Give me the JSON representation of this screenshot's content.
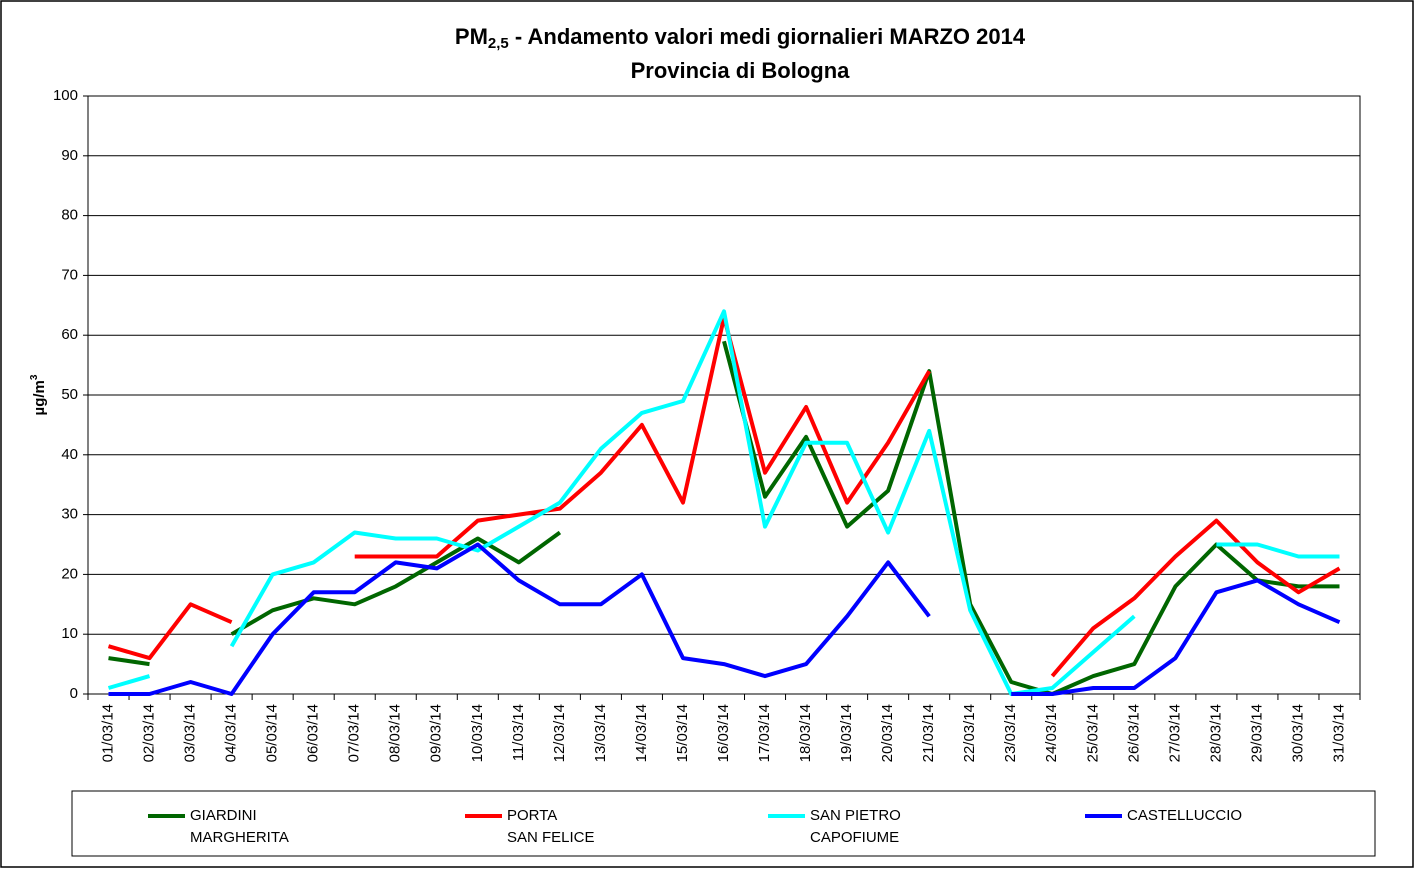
{
  "chart_data": {
    "type": "line",
    "title": "PM",
    "title_subscript": "2,5",
    "title_rest": " - Andamento valori medi giornalieri MARZO 2014",
    "subtitle": "Provincia di Bologna",
    "ylabel": "µg/m",
    "ylabel_superscript": "3",
    "categories": [
      "01/03/14",
      "02/03/14",
      "03/03/14",
      "04/03/14",
      "05/03/14",
      "06/03/14",
      "07/03/14",
      "08/03/14",
      "09/03/14",
      "10/03/14",
      "11/03/14",
      "12/03/14",
      "13/03/14",
      "14/03/14",
      "15/03/14",
      "16/03/14",
      "17/03/14",
      "18/03/14",
      "19/03/14",
      "20/03/14",
      "21/03/14",
      "22/03/14",
      "23/03/14",
      "24/03/14",
      "25/03/14",
      "26/03/14",
      "27/03/14",
      "28/03/14",
      "29/03/14",
      "30/03/14",
      "31/03/14"
    ],
    "series": [
      {
        "name": "GIARDINI\nMARGHERITA",
        "color": "#006600",
        "values": [
          6,
          5,
          null,
          10,
          14,
          16,
          15,
          18,
          22,
          26,
          22,
          27,
          null,
          null,
          null,
          59,
          33,
          43,
          28,
          34,
          54,
          15,
          2,
          0,
          3,
          5,
          18,
          25,
          19,
          18,
          18
        ]
      },
      {
        "name": "PORTA\nSAN FELICE",
        "color": "#ff0000",
        "values": [
          8,
          6,
          15,
          12,
          null,
          null,
          23,
          23,
          23,
          29,
          30,
          31,
          37,
          45,
          32,
          63,
          37,
          48,
          32,
          42,
          54,
          null,
          null,
          3,
          11,
          16,
          23,
          29,
          22,
          17,
          21
        ]
      },
      {
        "name": "SAN PIETRO\nCAPOFIUME",
        "color": "#00ffff",
        "values": [
          1,
          3,
          null,
          8,
          20,
          22,
          27,
          26,
          26,
          24,
          28,
          32,
          41,
          47,
          49,
          64,
          28,
          42,
          42,
          27,
          44,
          14,
          0,
          1,
          7,
          13,
          null,
          25,
          25,
          23,
          23
        ]
      },
      {
        "name": "CASTELLUCCIO",
        "color": "#0000ff",
        "values": [
          0,
          0,
          2,
          0,
          10,
          17,
          17,
          22,
          21,
          25,
          19,
          15,
          15,
          20,
          6,
          5,
          3,
          5,
          13,
          22,
          13,
          null,
          0,
          0,
          1,
          1,
          6,
          17,
          19,
          15,
          12
        ]
      }
    ],
    "ylim": [
      0,
      100
    ],
    "yticks": [
      0,
      10,
      20,
      30,
      40,
      50,
      60,
      70,
      80,
      90,
      100
    ],
    "grid": true
  }
}
